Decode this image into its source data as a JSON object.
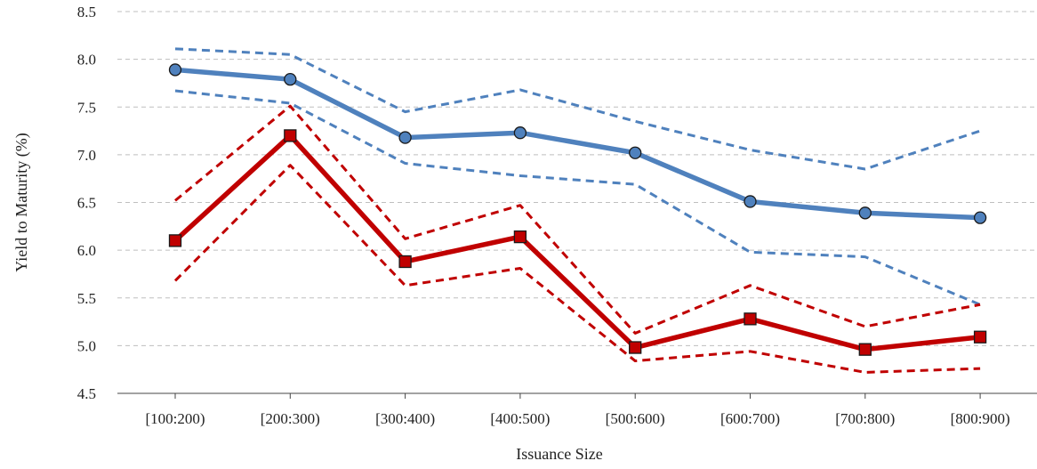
{
  "chart_data": {
    "type": "line",
    "title": "",
    "xlabel": "Issuance Size",
    "ylabel": "Yield to Maturity (%)",
    "ylim": [
      4.5,
      8.5
    ],
    "yticks": [
      "4.5",
      "5.0",
      "5.5",
      "6.0",
      "6.5",
      "7.0",
      "7.5",
      "8.0",
      "8.5"
    ],
    "grid": "horizontal dashed",
    "categories": [
      "[100:200)",
      "[200:300)",
      "[300:400)",
      "[400:500)",
      "[500:600)",
      "[600:700)",
      "[700:800)",
      "[800:900)"
    ],
    "series": [
      {
        "role": "mean",
        "marker": "circle",
        "line": "solid",
        "color": "#4f81bd",
        "values": [
          7.89,
          7.79,
          7.18,
          7.23,
          7.02,
          6.51,
          6.39,
          6.34
        ]
      },
      {
        "role": "upper band",
        "line": "dashed",
        "color": "#4f81bd",
        "values": [
          8.11,
          8.05,
          7.45,
          7.68,
          7.35,
          7.05,
          6.85,
          7.25
        ]
      },
      {
        "role": "lower band",
        "line": "dashed",
        "color": "#4f81bd",
        "values": [
          7.67,
          7.54,
          6.91,
          6.78,
          6.69,
          5.98,
          5.93,
          5.43
        ]
      },
      {
        "role": "mean",
        "marker": "square",
        "line": "solid",
        "color": "#c00000",
        "values": [
          6.1,
          7.2,
          5.88,
          6.14,
          4.98,
          5.28,
          4.96,
          5.09
        ]
      },
      {
        "role": "upper band",
        "line": "dashed",
        "color": "#c00000",
        "values": [
          6.52,
          7.51,
          6.12,
          6.47,
          5.13,
          5.63,
          5.2,
          5.43
        ]
      },
      {
        "role": "lower band",
        "line": "dashed",
        "color": "#c00000",
        "values": [
          5.68,
          6.89,
          5.63,
          5.81,
          4.84,
          4.94,
          4.72,
          4.76
        ]
      }
    ]
  }
}
